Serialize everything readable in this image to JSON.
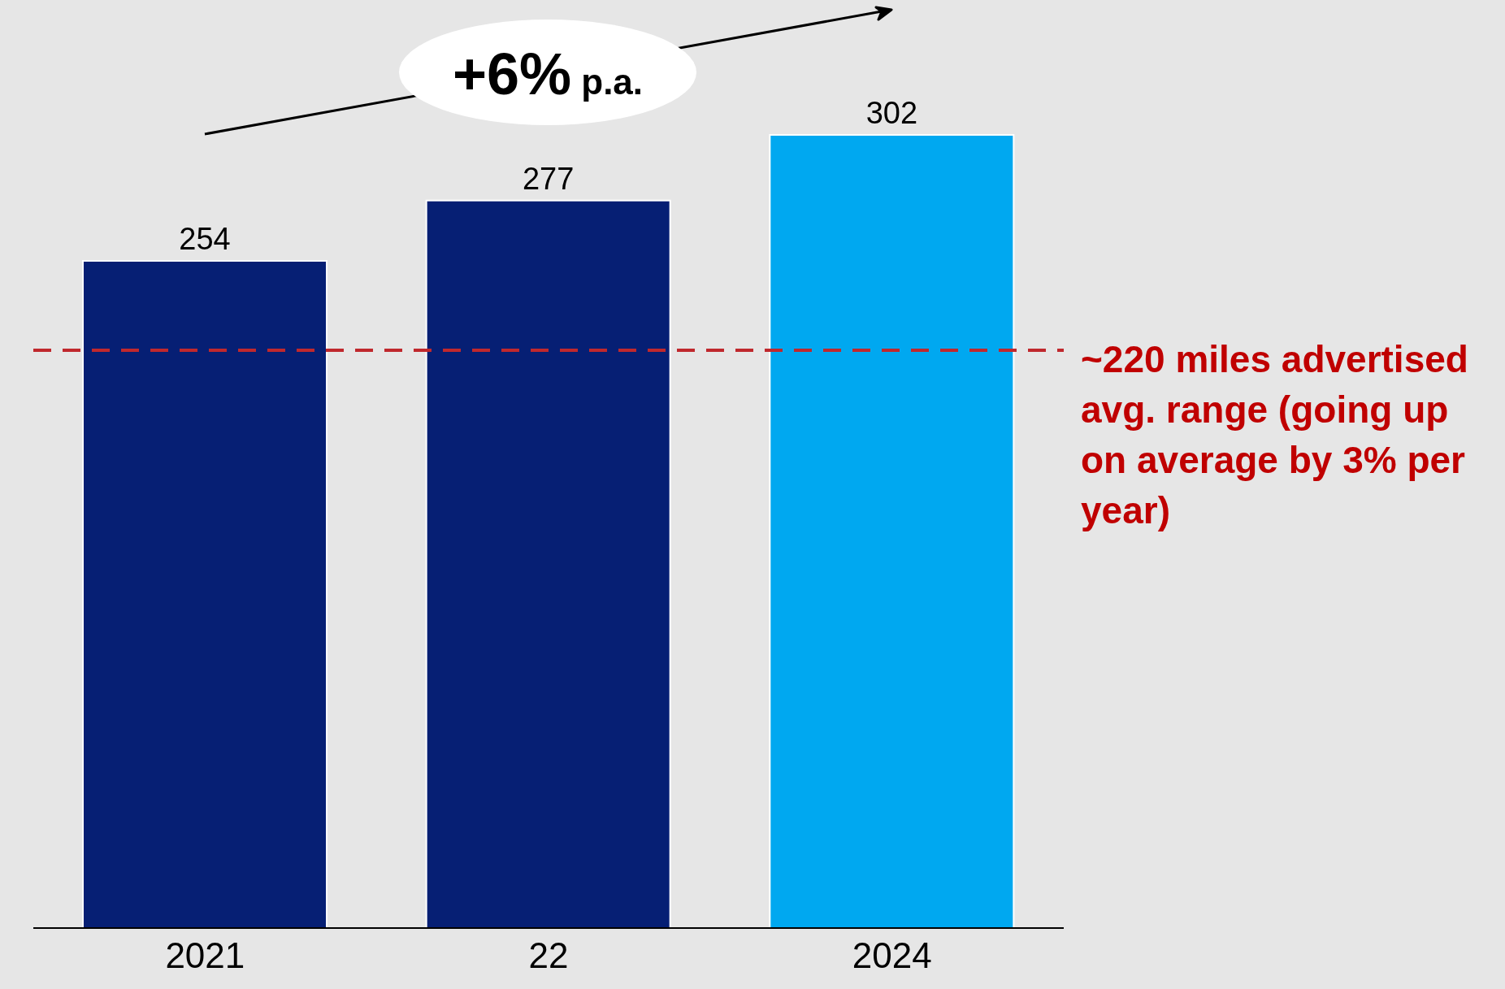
{
  "chart_data": {
    "type": "bar",
    "categories": [
      "2021",
      "22",
      "2024"
    ],
    "values": [
      254,
      277,
      302
    ],
    "colors": [
      "#061f74",
      "#061f74",
      "#00a8f0"
    ],
    "data_labels": true,
    "ref_lines": [
      {
        "axis": "y",
        "value": 220,
        "label": "~220 miles advertised avg. range (going up on average by 3% per year)",
        "color": "#c0282d",
        "line_style": "dashed"
      }
    ],
    "annotations": [
      "+6% p.a."
    ]
  }
}
